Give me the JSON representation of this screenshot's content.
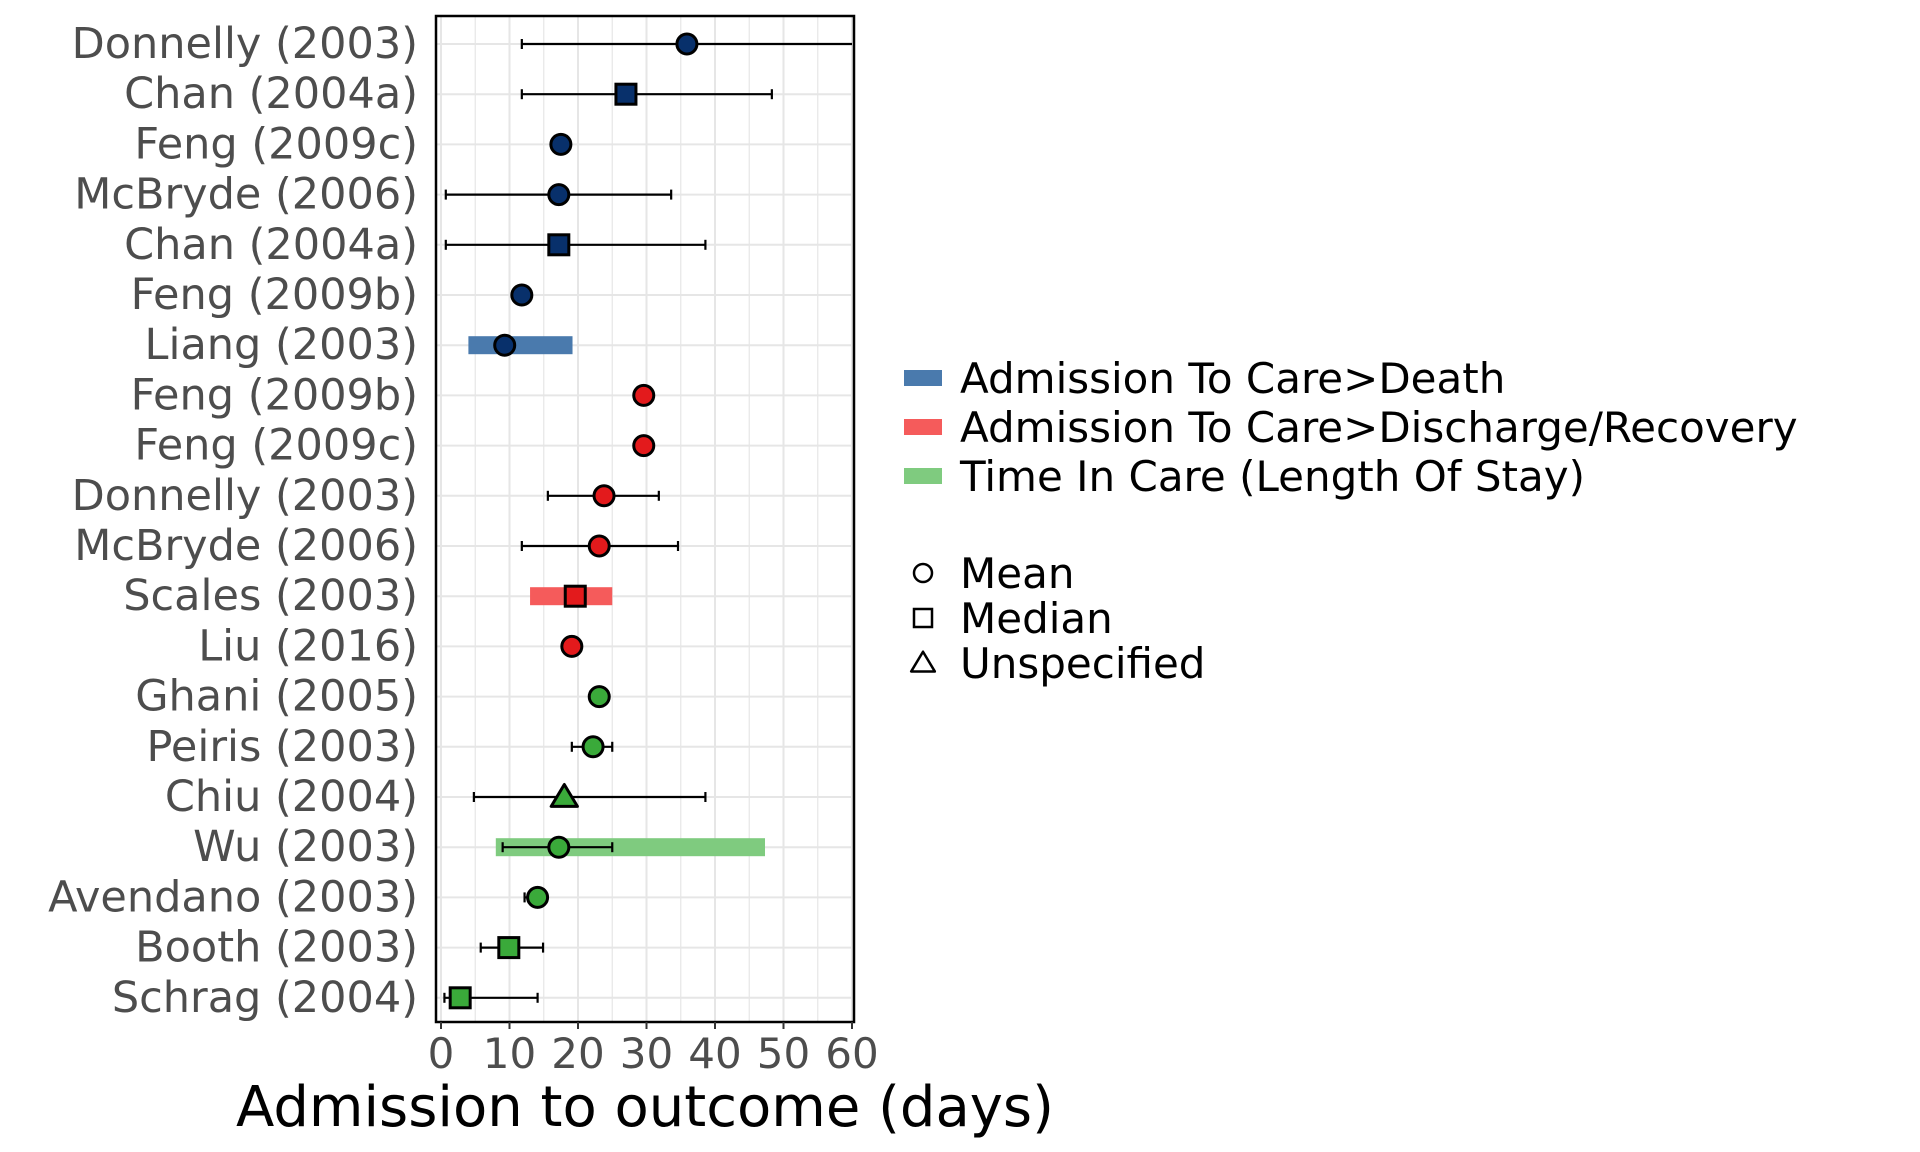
{
  "chart_data": {
    "type": "scatter",
    "title": "",
    "xlabel": "Admission to outcome (days)",
    "ylabel": "",
    "xlim": [
      0,
      60
    ],
    "xticks": [
      0,
      10,
      20,
      30,
      40,
      50,
      60
    ],
    "grid": true,
    "legend_position": "right",
    "categories": [
      "Donnelly (2003)",
      "Chan (2004a)",
      "Feng (2009c)",
      "McBryde (2006)",
      "Chan (2004a)",
      "Feng (2009b)",
      "Liang (2003)",
      "Feng (2009b)",
      "Feng (2009c)",
      "Donnelly (2003)",
      "McBryde (2006)",
      "Scales (2003)",
      "Liu (2016)",
      "Ghani (2005)",
      "Peiris (2003)",
      "Chiu (2004)",
      "Wu (2003)",
      "Avendano (2003)",
      "Booth (2003)",
      "Schrag (2004)"
    ],
    "series": [
      {
        "name": "Admission To Care>Death",
        "color": "#08306b",
        "range_color": "#4a7aad",
        "points": [
          {
            "row": 0,
            "value": 35.9,
            "shape": "circle",
            "ci": [
              11.8,
              60
            ]
          },
          {
            "row": 1,
            "value": 27.0,
            "shape": "square",
            "ci": [
              11.8,
              48.3
            ]
          },
          {
            "row": 2,
            "value": 17.5,
            "shape": "circle"
          },
          {
            "row": 3,
            "value": 17.2,
            "shape": "circle",
            "ci": [
              0.7,
              33.6
            ]
          },
          {
            "row": 4,
            "value": 17.2,
            "shape": "square",
            "ci": [
              0.7,
              38.6
            ]
          },
          {
            "row": 5,
            "value": 11.8,
            "shape": "circle"
          },
          {
            "row": 6,
            "value": 9.3,
            "shape": "circle",
            "range": [
              4.0,
              19.2
            ]
          }
        ]
      },
      {
        "name": "Admission To Care>Discharge/Recovery",
        "color": "#e31a1c",
        "range_color": "#f55b5b",
        "points": [
          {
            "row": 7,
            "value": 29.6,
            "shape": "circle"
          },
          {
            "row": 8,
            "value": 29.6,
            "shape": "circle"
          },
          {
            "row": 9,
            "value": 23.8,
            "shape": "circle",
            "ci": [
              15.6,
              31.8
            ]
          },
          {
            "row": 10,
            "value": 23.1,
            "shape": "circle",
            "ci": [
              11.8,
              34.6
            ]
          },
          {
            "row": 11,
            "value": 19.6,
            "shape": "square",
            "range": [
              13.0,
              25.0
            ]
          },
          {
            "row": 12,
            "value": 19.1,
            "shape": "circle"
          }
        ]
      },
      {
        "name": "Time In Care (Length Of Stay)",
        "color": "#3aaa3a",
        "range_color": "#7fcb7f",
        "points": [
          {
            "row": 13,
            "value": 23.1,
            "shape": "circle"
          },
          {
            "row": 14,
            "value": 22.2,
            "shape": "circle",
            "ci": [
              19.1,
              25.0
            ]
          },
          {
            "row": 15,
            "value": 18.0,
            "shape": "triangle",
            "ci": [
              4.8,
              38.6
            ]
          },
          {
            "row": 16,
            "value": 17.2,
            "shape": "circle",
            "ci": [
              9.0,
              25.0
            ],
            "range": [
              8.0,
              47.3
            ]
          },
          {
            "row": 17,
            "value": 14.1,
            "shape": "circle",
            "ci": [
              12.2,
              14.5
            ]
          },
          {
            "row": 18,
            "value": 9.9,
            "shape": "square",
            "ci": [
              5.8,
              14.9
            ]
          },
          {
            "row": 19,
            "value": 2.8,
            "shape": "square",
            "ci": [
              0.5,
              14.1
            ]
          }
        ]
      }
    ],
    "shape_legend": [
      {
        "shape": "circle",
        "label": "Mean"
      },
      {
        "shape": "square",
        "label": "Median"
      },
      {
        "shape": "triangle",
        "label": "Unspecified"
      }
    ]
  }
}
